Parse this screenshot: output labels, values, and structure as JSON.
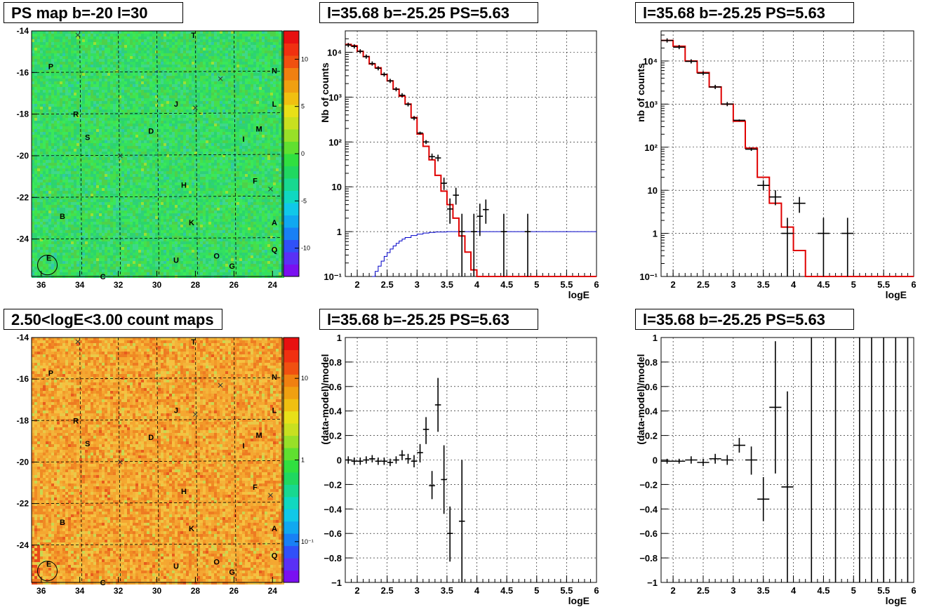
{
  "colors": {
    "data": "#000000",
    "model": "#e00000",
    "efficiency": "#0000c8",
    "grid": "#000000"
  },
  "panels": {
    "map_ps": {
      "title": "PS map b=-20 l=30"
    },
    "map_count": {
      "title": "2.50<logE<3.00 count maps"
    },
    "spec1": {
      "title": "l=35.68 b=-25.25 PS=5.63"
    },
    "spec2": {
      "title": "l=35.68 b=-25.25 PS=5.63"
    },
    "res1": {
      "title": "l=35.68 b=-25.25 PS=5.63"
    },
    "res2": {
      "title": "l=35.68 b=-25.25 PS=5.63"
    }
  },
  "maps": {
    "x_ticks": [
      "36",
      "34",
      "32",
      "30",
      "28",
      "26",
      "24"
    ],
    "y_ticks": [
      "-14",
      "-16",
      "-18",
      "-20",
      "-22",
      "-24"
    ],
    "xlim": [
      36.5,
      23.5
    ],
    "ylim": [
      -25.8,
      -14
    ],
    "sources": [
      {
        "label": "T",
        "l": 28.1,
        "b": -14.2
      },
      {
        "label": "P",
        "l": 35.5,
        "b": -15.7
      },
      {
        "label": "N",
        "l": 23.9,
        "b": -15.9
      },
      {
        "label": "J",
        "l": 29.0,
        "b": -17.5
      },
      {
        "label": "L",
        "l": 23.9,
        "b": -17.5
      },
      {
        "label": "R",
        "l": 34.2,
        "b": -18.0
      },
      {
        "label": "D",
        "l": 30.3,
        "b": -18.8
      },
      {
        "label": "M",
        "l": 24.7,
        "b": -18.7
      },
      {
        "label": "S",
        "l": 33.6,
        "b": -19.1
      },
      {
        "label": "I",
        "l": 25.5,
        "b": -19.2
      },
      {
        "label": "F",
        "l": 24.9,
        "b": -21.2
      },
      {
        "label": "H",
        "l": 28.6,
        "b": -21.4
      },
      {
        "label": "B",
        "l": 34.9,
        "b": -22.9
      },
      {
        "label": "K",
        "l": 28.2,
        "b": -23.2
      },
      {
        "label": "A",
        "l": 23.9,
        "b": -23.2
      },
      {
        "label": "Q",
        "l": 23.9,
        "b": -24.5
      },
      {
        "label": "O",
        "l": 26.9,
        "b": -24.8
      },
      {
        "label": "U",
        "l": 29.0,
        "b": -25.0
      },
      {
        "label": "E",
        "l": 35.6,
        "b": -24.9
      },
      {
        "label": "G",
        "l": 26.1,
        "b": -25.3
      },
      {
        "label": "C",
        "l": 32.8,
        "b": -25.8
      }
    ],
    "crosses": [
      {
        "l": 34.1,
        "b": -14.2
      },
      {
        "l": 26.7,
        "b": -16.3
      },
      {
        "l": 28.0,
        "b": -17.7
      },
      {
        "l": 31.9,
        "b": -20.0
      },
      {
        "l": 24.1,
        "b": -21.6
      }
    ],
    "circle": {
      "l": 35.68,
      "b": -25.25
    }
  },
  "ps_colorbar": {
    "ticks": [
      "10",
      "5",
      "0",
      "-5",
      "-10"
    ],
    "range": [
      -13,
      13
    ]
  },
  "count_colorbar": {
    "ticks": [
      "10",
      "1",
      "10⁻¹"
    ],
    "range": [
      -1.5,
      1.5
    ]
  },
  "chart_data": [
    {
      "type": "line",
      "panel": "spec1",
      "title": "l=35.68 b=-25.25 PS=5.63",
      "xlabel": "logE",
      "ylabel": "Nb of counts",
      "xlim": [
        1.8,
        6
      ],
      "ylim": [
        0.1,
        30000
      ],
      "yscale": "log",
      "grid": true,
      "x_ticks": [
        "2",
        "2.5",
        "3",
        "3.5",
        "4",
        "4.5",
        "5",
        "5.5",
        "6"
      ],
      "y_ticks": [
        "10⁻¹",
        "1",
        "10",
        "10²",
        "10³",
        "10⁴"
      ],
      "model_edges": [
        1.8,
        1.9,
        2.0,
        2.1,
        2.2,
        2.3,
        2.4,
        2.5,
        2.6,
        2.7,
        2.8,
        2.9,
        3.0,
        3.1,
        3.2,
        3.3,
        3.4,
        3.5,
        3.6,
        3.7,
        3.8,
        3.9,
        4.0,
        6.0
      ],
      "model_values": [
        15000,
        14000,
        10500,
        8000,
        5500,
        4500,
        3200,
        2300,
        1500,
        1050,
        700,
        350,
        150,
        80,
        40,
        18,
        8,
        4,
        2,
        0.8,
        0.35,
        0.14,
        0.1
      ],
      "efficiency_edges": [
        2.25,
        2.3,
        2.35,
        2.4,
        2.45,
        2.5,
        2.55,
        2.6,
        2.65,
        2.7,
        2.75,
        2.8,
        2.9,
        3.0,
        3.1,
        3.2,
        3.3,
        3.5,
        6.0
      ],
      "efficiency_values": [
        0.1,
        0.13,
        0.17,
        0.22,
        0.28,
        0.34,
        0.41,
        0.48,
        0.55,
        0.62,
        0.68,
        0.74,
        0.82,
        0.88,
        0.93,
        0.96,
        0.98,
        1.0
      ],
      "points": [
        {
          "x": 1.85,
          "y": 14500,
          "xerr": 0.05,
          "lo": 14500,
          "hi": 14500
        },
        {
          "x": 1.95,
          "y": 13500,
          "xerr": 0.05,
          "lo": 13500,
          "hi": 13500
        },
        {
          "x": 2.05,
          "y": 10500,
          "xerr": 0.05,
          "lo": 10500,
          "hi": 10500
        },
        {
          "x": 2.15,
          "y": 8000,
          "xerr": 0.05,
          "lo": 8000,
          "hi": 8000
        },
        {
          "x": 2.25,
          "y": 5600,
          "xerr": 0.05,
          "lo": 5600,
          "hi": 5600
        },
        {
          "x": 2.35,
          "y": 4400,
          "xerr": 0.05,
          "lo": 4400,
          "hi": 4400
        },
        {
          "x": 2.45,
          "y": 3200,
          "xerr": 0.05,
          "lo": 3200,
          "hi": 3200
        },
        {
          "x": 2.55,
          "y": 2300,
          "xerr": 0.05,
          "lo": 2300,
          "hi": 2300
        },
        {
          "x": 2.65,
          "y": 1500,
          "xerr": 0.05,
          "lo": 1500,
          "hi": 1500
        },
        {
          "x": 2.75,
          "y": 1100,
          "xerr": 0.05,
          "lo": 1100,
          "hi": 1100
        },
        {
          "x": 2.85,
          "y": 690,
          "xerr": 0.05,
          "lo": 690,
          "hi": 690
        },
        {
          "x": 2.95,
          "y": 340,
          "xerr": 0.05,
          "lo": 340,
          "hi": 340
        },
        {
          "x": 3.05,
          "y": 158,
          "xerr": 0.05,
          "lo": 146,
          "hi": 170
        },
        {
          "x": 3.15,
          "y": 100,
          "xerr": 0.05,
          "lo": 90,
          "hi": 110
        },
        {
          "x": 3.25,
          "y": 47,
          "xerr": 0.05,
          "lo": 40,
          "hi": 55
        },
        {
          "x": 3.35,
          "y": 44,
          "xerr": 0.05,
          "lo": 37,
          "hi": 52
        },
        {
          "x": 3.45,
          "y": 12,
          "xerr": 0.05,
          "lo": 8.5,
          "hi": 16
        },
        {
          "x": 3.55,
          "y": 3.2,
          "xerr": 0.05,
          "lo": 1.5,
          "hi": 5.5
        },
        {
          "x": 3.65,
          "y": 6.5,
          "xerr": 0.05,
          "lo": 4,
          "hi": 9.5
        },
        {
          "x": 3.75,
          "y": 1.0,
          "xerr": 0.05,
          "lo": 0.1,
          "hi": 2.5
        },
        {
          "x": 3.95,
          "y": 1.0,
          "xerr": 0.05,
          "lo": 0.1,
          "hi": 2.5
        },
        {
          "x": 4.05,
          "y": 2.2,
          "xerr": 0.05,
          "lo": 0.8,
          "hi": 4.2
        },
        {
          "x": 4.15,
          "y": 3.1,
          "xerr": 0.05,
          "lo": 1.5,
          "hi": 5.2
        },
        {
          "x": 4.45,
          "y": 1.0,
          "xerr": 0.05,
          "lo": 0.1,
          "hi": 2.5
        },
        {
          "x": 4.85,
          "y": 1.0,
          "xerr": 0.05,
          "lo": 0.1,
          "hi": 2.5
        }
      ]
    },
    {
      "type": "line",
      "panel": "spec2",
      "title": "l=35.68 b=-25.25 PS=5.63",
      "xlabel": "logE",
      "ylabel": "nb of counts",
      "xlim": [
        1.8,
        6
      ],
      "ylim": [
        0.1,
        50000
      ],
      "yscale": "log",
      "grid": true,
      "x_ticks": [
        "2",
        "2.5",
        "3",
        "3.5",
        "4",
        "4.5",
        "5",
        "5.5",
        "6"
      ],
      "y_ticks": [
        "10⁻¹",
        "1",
        "10",
        "10²",
        "10³",
        "10⁴"
      ],
      "model_edges": [
        1.8,
        2.0,
        2.2,
        2.4,
        2.6,
        2.8,
        3.0,
        3.2,
        3.4,
        3.6,
        3.8,
        4.0,
        4.2,
        6.0
      ],
      "model_values": [
        30000,
        22000,
        10000,
        5400,
        2500,
        1000,
        400,
        95,
        20,
        5,
        1.4,
        0.4,
        0.1
      ],
      "points": [
        {
          "x": 1.9,
          "y": 30000,
          "xerr": 0.1,
          "lo": 30000,
          "hi": 30000
        },
        {
          "x": 2.1,
          "y": 21000,
          "xerr": 0.1,
          "lo": 21000,
          "hi": 21000
        },
        {
          "x": 2.3,
          "y": 9800,
          "xerr": 0.1,
          "lo": 9800,
          "hi": 9800
        },
        {
          "x": 2.5,
          "y": 5200,
          "xerr": 0.1,
          "lo": 5200,
          "hi": 5200
        },
        {
          "x": 2.7,
          "y": 2500,
          "xerr": 0.1,
          "lo": 2500,
          "hi": 2500
        },
        {
          "x": 2.9,
          "y": 1000,
          "xerr": 0.1,
          "lo": 1000,
          "hi": 1000
        },
        {
          "x": 3.1,
          "y": 420,
          "xerr": 0.1,
          "lo": 400,
          "hi": 440
        },
        {
          "x": 3.3,
          "y": 90,
          "xerr": 0.1,
          "lo": 82,
          "hi": 98
        },
        {
          "x": 3.5,
          "y": 13,
          "xerr": 0.1,
          "lo": 10,
          "hi": 17
        },
        {
          "x": 3.7,
          "y": 7,
          "xerr": 0.1,
          "lo": 4.5,
          "hi": 10
        },
        {
          "x": 3.9,
          "y": 1.0,
          "xerr": 0.1,
          "lo": 0.1,
          "hi": 2.3
        },
        {
          "x": 4.1,
          "y": 5,
          "xerr": 0.1,
          "lo": 3,
          "hi": 7
        },
        {
          "x": 4.5,
          "y": 1.0,
          "xerr": 0.1,
          "lo": 0.1,
          "hi": 2.3
        },
        {
          "x": 4.9,
          "y": 1.0,
          "xerr": 0.1,
          "lo": 0.1,
          "hi": 2.3
        }
      ]
    },
    {
      "type": "scatter",
      "panel": "res1",
      "title": "l=35.68 b=-25.25 PS=5.63",
      "xlabel": "logE",
      "ylabel": "(data-model)/model",
      "xlim": [
        1.8,
        6
      ],
      "ylim": [
        -1,
        1
      ],
      "grid": true,
      "x_ticks": [
        "2",
        "2.5",
        "3",
        "3.5",
        "4",
        "4.5",
        "5",
        "5.5",
        "6"
      ],
      "y_ticks": [
        "−1",
        "−0.8",
        "−0.6",
        "−0.4",
        "−0.2",
        "0",
        "0.2",
        "0.4",
        "0.6",
        "0.8",
        "1"
      ],
      "points": [
        {
          "x": 1.85,
          "y": 0.0,
          "xerr": 0.05,
          "lo": -0.03,
          "hi": 0.03
        },
        {
          "x": 1.95,
          "y": -0.01,
          "xerr": 0.05,
          "lo": -0.04,
          "hi": 0.02
        },
        {
          "x": 2.05,
          "y": -0.01,
          "xerr": 0.05,
          "lo": -0.04,
          "hi": 0.02
        },
        {
          "x": 2.15,
          "y": 0.0,
          "xerr": 0.05,
          "lo": -0.03,
          "hi": 0.03
        },
        {
          "x": 2.25,
          "y": 0.01,
          "xerr": 0.05,
          "lo": -0.02,
          "hi": 0.04
        },
        {
          "x": 2.35,
          "y": -0.01,
          "xerr": 0.05,
          "lo": -0.04,
          "hi": 0.02
        },
        {
          "x": 2.45,
          "y": -0.01,
          "xerr": 0.05,
          "lo": -0.04,
          "hi": 0.02
        },
        {
          "x": 2.55,
          "y": -0.02,
          "xerr": 0.05,
          "lo": -0.05,
          "hi": 0.01
        },
        {
          "x": 2.65,
          "y": 0.0,
          "xerr": 0.05,
          "lo": -0.03,
          "hi": 0.03
        },
        {
          "x": 2.75,
          "y": 0.04,
          "xerr": 0.05,
          "lo": 0.0,
          "hi": 0.08
        },
        {
          "x": 2.85,
          "y": 0.01,
          "xerr": 0.05,
          "lo": -0.03,
          "hi": 0.05
        },
        {
          "x": 2.95,
          "y": -0.01,
          "xerr": 0.05,
          "lo": -0.06,
          "hi": 0.04
        },
        {
          "x": 3.05,
          "y": 0.06,
          "xerr": 0.05,
          "lo": -0.02,
          "hi": 0.13
        },
        {
          "x": 3.15,
          "y": 0.25,
          "xerr": 0.05,
          "lo": 0.13,
          "hi": 0.35
        },
        {
          "x": 3.25,
          "y": -0.21,
          "xerr": 0.05,
          "lo": -0.32,
          "hi": -0.09
        },
        {
          "x": 3.35,
          "y": 0.45,
          "xerr": 0.05,
          "lo": 0.23,
          "hi": 0.67
        },
        {
          "x": 3.45,
          "y": -0.16,
          "xerr": 0.05,
          "lo": -0.44,
          "hi": 0.12
        },
        {
          "x": 3.55,
          "y": -0.6,
          "xerr": 0.05,
          "lo": -0.83,
          "hi": -0.38
        },
        {
          "x": 3.75,
          "y": -0.5,
          "xerr": 0.05,
          "lo": -1.0,
          "hi": 0.0
        }
      ]
    },
    {
      "type": "scatter",
      "panel": "res2",
      "title": "l=35.68 b=-25.25 PS=5.63",
      "xlabel": "logE",
      "ylabel": "(data-model)/model",
      "xlim": [
        1.8,
        6
      ],
      "ylim": [
        -1,
        1
      ],
      "grid": true,
      "x_ticks": [
        "2",
        "2.5",
        "3",
        "3.5",
        "4",
        "4.5",
        "5",
        "5.5",
        "6"
      ],
      "y_ticks": [
        "−1",
        "−0.8",
        "−0.6",
        "−0.4",
        "−0.2",
        "0",
        "0.2",
        "0.4",
        "0.6",
        "0.8",
        "1"
      ],
      "points": [
        {
          "x": 1.9,
          "y": -0.01,
          "xerr": 0.1,
          "lo": -0.03,
          "hi": 0.01
        },
        {
          "x": 2.1,
          "y": -0.01,
          "xerr": 0.1,
          "lo": -0.03,
          "hi": 0.01
        },
        {
          "x": 2.3,
          "y": 0.0,
          "xerr": 0.1,
          "lo": -0.03,
          "hi": 0.03
        },
        {
          "x": 2.5,
          "y": -0.02,
          "xerr": 0.1,
          "lo": -0.05,
          "hi": 0.01
        },
        {
          "x": 2.7,
          "y": 0.01,
          "xerr": 0.1,
          "lo": -0.03,
          "hi": 0.05
        },
        {
          "x": 2.9,
          "y": 0.0,
          "xerr": 0.1,
          "lo": -0.04,
          "hi": 0.04
        },
        {
          "x": 3.1,
          "y": 0.12,
          "xerr": 0.1,
          "lo": 0.06,
          "hi": 0.18
        },
        {
          "x": 3.3,
          "y": 0.0,
          "xerr": 0.1,
          "lo": -0.12,
          "hi": 0.11
        },
        {
          "x": 3.5,
          "y": -0.32,
          "xerr": 0.1,
          "lo": -0.5,
          "hi": -0.14
        },
        {
          "x": 3.7,
          "y": 0.43,
          "xerr": 0.1,
          "lo": -0.11,
          "hi": 0.97
        },
        {
          "x": 3.9,
          "y": -0.22,
          "xerr": 0.1,
          "lo": -1.0,
          "hi": 0.56
        },
        {
          "x": 4.3,
          "y": 1.0,
          "xerr": 0,
          "lo": -1.0,
          "hi": 1.0
        },
        {
          "x": 4.7,
          "y": 1.0,
          "xerr": 0,
          "lo": -1.0,
          "hi": 1.0
        },
        {
          "x": 5.1,
          "y": 1.0,
          "xerr": 0,
          "lo": -1.0,
          "hi": 1.0
        },
        {
          "x": 5.3,
          "y": 1.0,
          "xerr": 0,
          "lo": -1.0,
          "hi": 1.0
        },
        {
          "x": 5.5,
          "y": 1.0,
          "xerr": 0,
          "lo": -1.0,
          "hi": 1.0
        },
        {
          "x": 5.7,
          "y": 1.0,
          "xerr": 0,
          "lo": -1.0,
          "hi": 1.0
        },
        {
          "x": 5.9,
          "y": 1.0,
          "xerr": 0,
          "lo": -1.0,
          "hi": 1.0
        }
      ]
    }
  ]
}
